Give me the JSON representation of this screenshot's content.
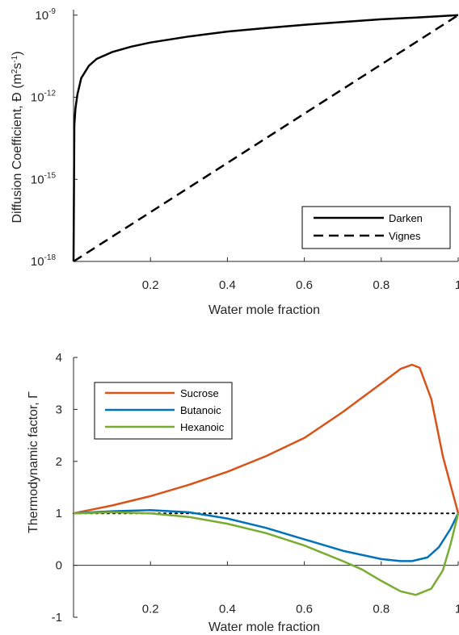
{
  "chart_data": [
    {
      "type": "line",
      "xlabel": "Water mole fraction",
      "ylabel": "Diffusion Coefficient, Đ (m²s⁻¹)",
      "xlim": [
        0,
        1
      ],
      "ylim_log10": [
        -18,
        -8.8
      ],
      "y_scale": "log",
      "x_ticks": [
        0.2,
        0.4,
        0.6,
        0.8,
        1
      ],
      "x_tick_labels": [
        "0.2",
        "0.4",
        "0.6",
        "0.8",
        "1"
      ],
      "y_tick_exponents": [
        -18,
        -15,
        -12,
        -9
      ],
      "grid": false,
      "legend_position": "bottom-right",
      "series": [
        {
          "name": "Darken",
          "color": "#000000",
          "dash": "solid",
          "x": [
            0.0,
            0.002,
            0.005,
            0.01,
            0.02,
            0.04,
            0.06,
            0.1,
            0.15,
            0.2,
            0.3,
            0.4,
            0.5,
            0.6,
            0.7,
            0.8,
            0.9,
            1.0
          ],
          "y_log10": [
            -18,
            -13.0,
            -12.4,
            -11.9,
            -11.3,
            -10.85,
            -10.6,
            -10.35,
            -10.15,
            -10.0,
            -9.78,
            -9.6,
            -9.47,
            -9.35,
            -9.25,
            -9.15,
            -9.08,
            -9.0
          ]
        },
        {
          "name": "Vignes",
          "color": "#000000",
          "dash": "dashed",
          "x": [
            0,
            1
          ],
          "y_log10": [
            -18,
            -9
          ]
        }
      ]
    },
    {
      "type": "line",
      "xlabel": "Water mole fraction",
      "ylabel": "Thermodynamic factor, Γ",
      "xlim": [
        0,
        1
      ],
      "ylim": [
        -1,
        4
      ],
      "x_ticks": [
        0.2,
        0.4,
        0.6,
        0.8,
        1
      ],
      "x_tick_labels": [
        "0.2",
        "0.4",
        "0.6",
        "0.8",
        "1"
      ],
      "y_ticks": [
        -1,
        0,
        1,
        2,
        3,
        4
      ],
      "y_tick_labels": [
        "-1",
        "0",
        "1",
        "2",
        "3",
        "4"
      ],
      "grid": false,
      "legend_position": "top-left",
      "reference_line": {
        "y": 1,
        "style": "dotted"
      },
      "series": [
        {
          "name": "Sucrose",
          "color": "#D95319",
          "x": [
            0.0,
            0.1,
            0.2,
            0.3,
            0.4,
            0.5,
            0.6,
            0.7,
            0.8,
            0.85,
            0.88,
            0.9,
            0.93,
            0.96,
            1.0
          ],
          "y": [
            1.0,
            1.15,
            1.33,
            1.55,
            1.8,
            2.1,
            2.45,
            2.95,
            3.5,
            3.78,
            3.86,
            3.8,
            3.2,
            2.1,
            1.0
          ]
        },
        {
          "name": "Butanoic",
          "color": "#0072BD",
          "x": [
            0.0,
            0.1,
            0.2,
            0.3,
            0.4,
            0.5,
            0.6,
            0.7,
            0.8,
            0.85,
            0.88,
            0.92,
            0.95,
            0.98,
            1.0
          ],
          "y": [
            1.0,
            1.04,
            1.06,
            1.02,
            0.9,
            0.72,
            0.5,
            0.28,
            0.12,
            0.08,
            0.08,
            0.15,
            0.35,
            0.7,
            1.0
          ]
        },
        {
          "name": "Hexanoic",
          "color": "#77AC30",
          "x": [
            0.0,
            0.1,
            0.2,
            0.3,
            0.4,
            0.5,
            0.6,
            0.7,
            0.75,
            0.8,
            0.85,
            0.89,
            0.93,
            0.96,
            0.98,
            1.0
          ],
          "y": [
            1.0,
            1.02,
            1.0,
            0.93,
            0.8,
            0.62,
            0.38,
            0.08,
            -0.08,
            -0.3,
            -0.5,
            -0.57,
            -0.45,
            -0.1,
            0.4,
            1.0
          ]
        }
      ]
    }
  ]
}
